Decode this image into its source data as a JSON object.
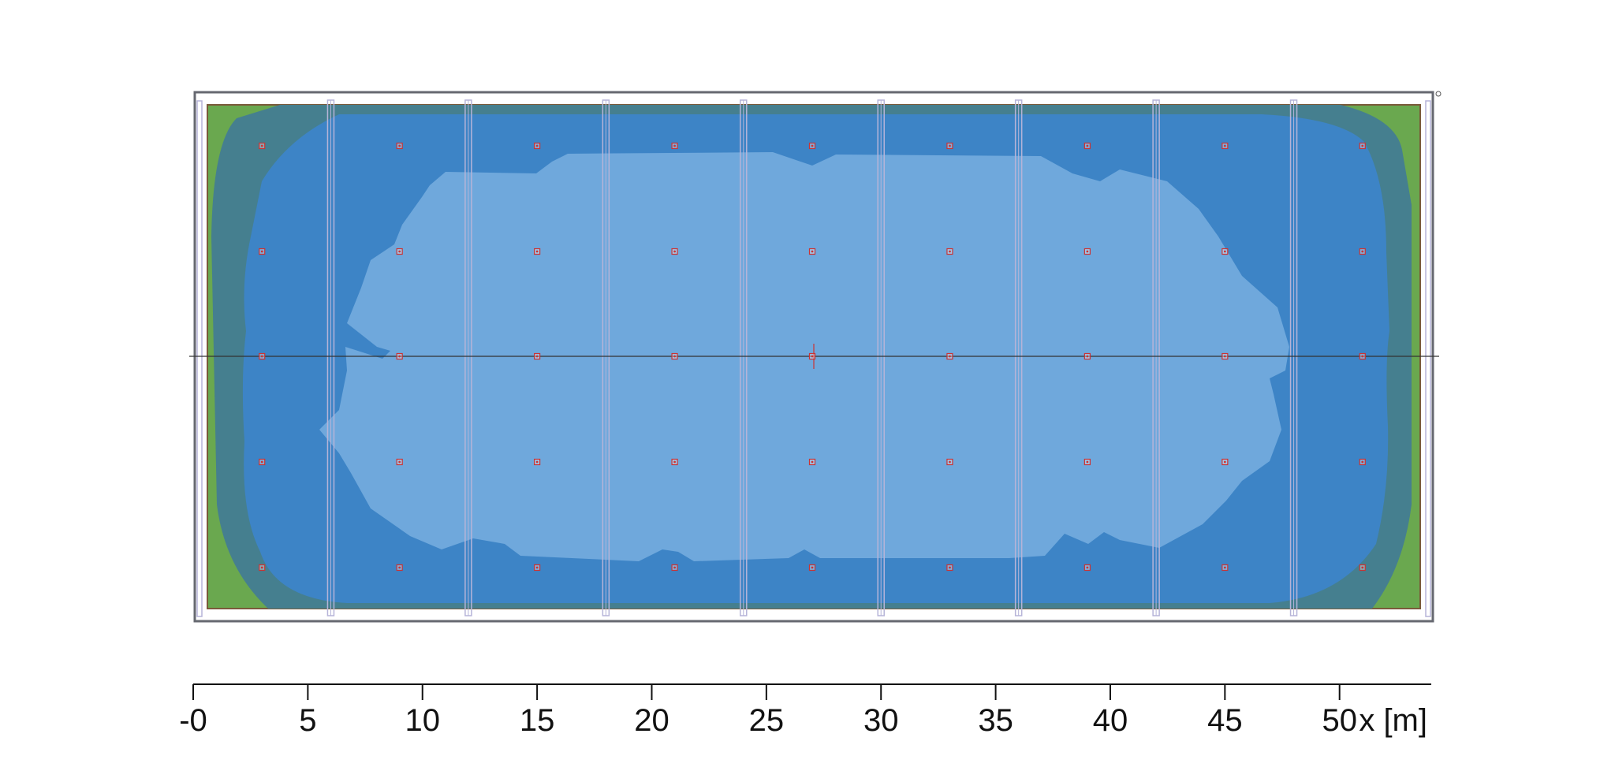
{
  "scale": {
    "min": 0,
    "max": 54,
    "ticks": [
      {
        "value": 0,
        "label": "-0"
      },
      {
        "value": 5,
        "label": "5"
      },
      {
        "value": 10,
        "label": "10"
      },
      {
        "value": 15,
        "label": "15"
      },
      {
        "value": 20,
        "label": "20"
      },
      {
        "value": 25,
        "label": "25"
      },
      {
        "value": 30,
        "label": "30"
      },
      {
        "value": 35,
        "label": "35"
      },
      {
        "value": 40,
        "label": "40"
      },
      {
        "value": 45,
        "label": "45"
      },
      {
        "value": 50,
        "label": "50"
      }
    ],
    "unit_label": "x [m]"
  },
  "colors": {
    "outer_green": "#6aa84f",
    "teal_band": "#457f8f",
    "mid_blue": "#3d84c6",
    "light_blue": "#6fa8dc",
    "frame": "#666870",
    "beam": "#b6b4d8",
    "luminaire": "#cc3333",
    "border_brown": "#7a5a3a"
  },
  "luminaires": {
    "x_positions_m": [
      3,
      9,
      15,
      21,
      27,
      33,
      39,
      45,
      51
    ],
    "row_count": 5
  },
  "beams": {
    "x_positions_m": [
      6,
      12,
      18,
      24,
      30,
      36,
      42,
      48
    ]
  }
}
